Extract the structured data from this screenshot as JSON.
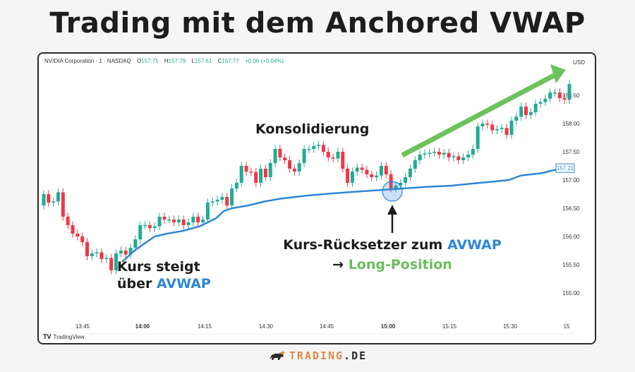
{
  "title": "Trading mit dem Anchored VWAP",
  "chart_header": {
    "symbol": "NVIDIA Corporation · 1 · NASDAQ",
    "open_label": "O",
    "open": "157.71",
    "high_label": "H",
    "high": "157.79",
    "low_label": "L",
    "low": "157.61",
    "close_label": "C",
    "close": "157.77",
    "change": "+0.06 (+0.04%)",
    "currency": "USD"
  },
  "annotations": {
    "konsolidierung": "Konsolidierung",
    "kurs_steigt_line1": "Kurs steigt",
    "kurs_steigt_line2_prefix": "über ",
    "kurs_steigt_line2_accent": "AVWAP",
    "pullback_line1_prefix": "Kurs-Rücksetzer zum ",
    "pullback_line1_accent": "AVWAP",
    "pullback_line2_arrow": "→ ",
    "pullback_line2_accent": "Long-Position"
  },
  "watermark": {
    "mark": "TV",
    "label": "TradingView"
  },
  "footer": {
    "brand_main": "TRADING",
    "brand_suffix": ".DE"
  },
  "colors": {
    "up": "#22ab94",
    "down": "#f23645",
    "avwap": "#2f86d6",
    "trend_arrow": "#6cc35c",
    "title": "#1d1d1d"
  },
  "chart_data": {
    "type": "candlestick",
    "title": "Trading mit dem Anchored VWAP",
    "subtitle": "NVIDIA Corporation - 1 - NASDAQ",
    "xlabel": "",
    "ylabel": "USD",
    "x_ticks": [
      "13:45",
      "14:00",
      "14:15",
      "14:30",
      "14:45",
      "15:00",
      "15:15",
      "15:30",
      "15"
    ],
    "y_ticks": [
      155.0,
      155.5,
      156.0,
      156.5,
      157.0,
      157.5,
      158.0,
      158.5
    ],
    "ylim": [
      154.75,
      158.85
    ],
    "grid": false,
    "last_avwap_label": "157.21",
    "series": [
      {
        "name": "AVWAP",
        "type": "line",
        "points": [
          [
            "13:55",
            155.55
          ],
          [
            "13:58",
            155.75
          ],
          [
            "14:00",
            155.85
          ],
          [
            "14:03",
            156.0
          ],
          [
            "14:06",
            156.05
          ],
          [
            "14:10",
            156.1
          ],
          [
            "14:14",
            156.18
          ],
          [
            "14:18",
            156.32
          ],
          [
            "14:20",
            156.45
          ],
          [
            "14:22",
            156.5
          ],
          [
            "14:26",
            156.55
          ],
          [
            "14:30",
            156.62
          ],
          [
            "14:34",
            156.67
          ],
          [
            "14:40",
            156.72
          ],
          [
            "14:46",
            156.76
          ],
          [
            "14:52",
            156.79
          ],
          [
            "15:00",
            156.83
          ],
          [
            "15:06",
            156.86
          ],
          [
            "15:10",
            156.88
          ],
          [
            "15:16",
            156.9
          ],
          [
            "15:20",
            156.93
          ],
          [
            "15:26",
            156.97
          ],
          [
            "15:30",
            157.0
          ],
          [
            "15:33",
            157.08
          ],
          [
            "15:38",
            157.12
          ],
          [
            "15:43",
            157.21
          ]
        ]
      }
    ],
    "annotations_on_chart": [
      {
        "text": "Konsolidierung",
        "near": "14:30-14:45"
      },
      {
        "text": "Kurs steigt über AVWAP",
        "near": "13:55"
      },
      {
        "text": "Kurs-Rücksetzer zum AVWAP → Long-Position",
        "near": "15:00"
      }
    ]
  }
}
